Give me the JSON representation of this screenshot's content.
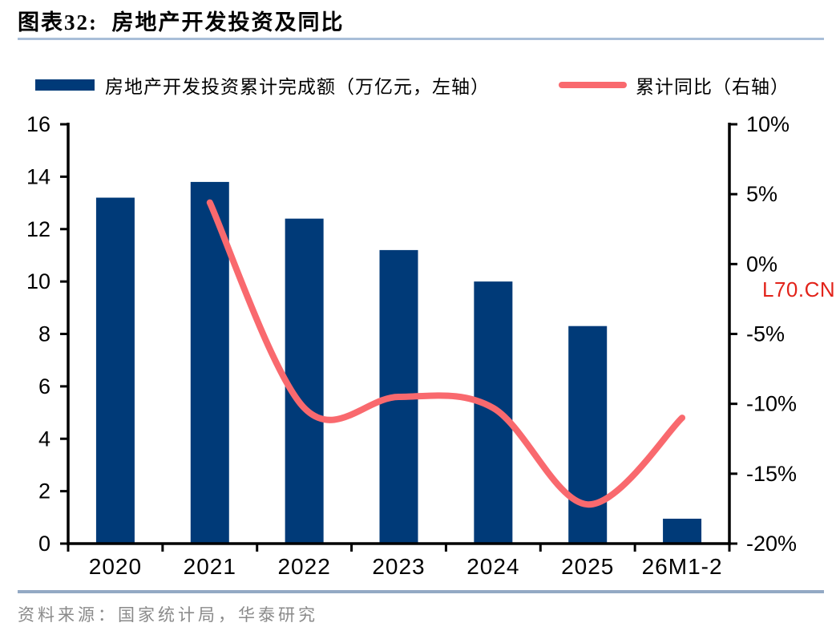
{
  "page": {
    "title": "图表32:  房地产开发投资及同比",
    "watermark": "L70.CN",
    "source": "资料来源：国家统计局，华泰研究"
  },
  "legend": [
    {
      "label": "房地产开发投资累计完成额（万亿元，左轴）",
      "swatch": "bar"
    },
    {
      "label": "累计同比（右轴）",
      "swatch": "line"
    }
  ],
  "colors": {
    "bar": "#003A78",
    "line": "#F9696E",
    "axis": "#000000",
    "title_underline": "#A9BED8",
    "footer_separator": "#93A9C4",
    "source_text": "#8A8A8A",
    "watermark": "#E2231A"
  },
  "chart_data": {
    "type": "bar",
    "subtype": "bar+line combo, dual axis",
    "title": "房地产开发投资及同比",
    "categories": [
      "2020",
      "2021",
      "2022",
      "2023",
      "2024",
      "2025",
      "26M1-2"
    ],
    "series": [
      {
        "name": "房地产开发投资累计完成额（万亿元，左轴）",
        "type": "bar",
        "axis": "left",
        "color": "#003A78",
        "values": [
          13.2,
          13.8,
          12.4,
          11.2,
          10.0,
          8.3,
          0.95
        ]
      },
      {
        "name": "累计同比（右轴）",
        "type": "line",
        "axis": "right",
        "color": "#F9696E",
        "values": [
          null,
          4.4,
          -10.3,
          -9.5,
          -10.3,
          -17.2,
          -11.0
        ]
      }
    ],
    "left_axis": {
      "min": 0,
      "max": 16,
      "tick_step": 2,
      "ticks": [
        "0",
        "2",
        "4",
        "6",
        "8",
        "10",
        "12",
        "14",
        "16"
      ]
    },
    "right_axis": {
      "min": -20,
      "max": 10,
      "tick_step": 5,
      "ticks_top_to_bottom": [
        "10%",
        "5%",
        "0%",
        "-5%",
        "-10%",
        "-15%",
        "-20%"
      ]
    },
    "grid": false,
    "legend_position": "top"
  }
}
